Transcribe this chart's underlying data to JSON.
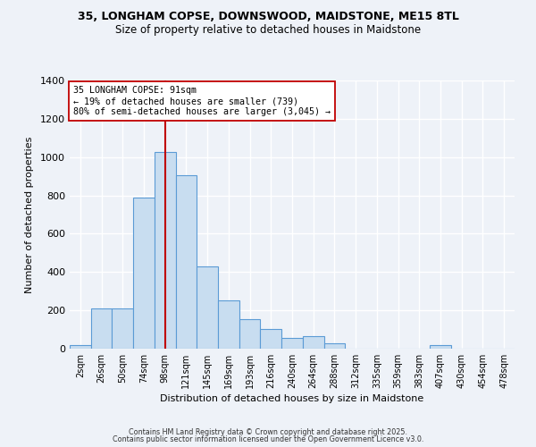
{
  "title_line1": "35, LONGHAM COPSE, DOWNSWOOD, MAIDSTONE, ME15 8TL",
  "title_line2": "Size of property relative to detached houses in Maidstone",
  "xlabel": "Distribution of detached houses by size in Maidstone",
  "ylabel": "Number of detached properties",
  "categories": [
    "2sqm",
    "26sqm",
    "50sqm",
    "74sqm",
    "98sqm",
    "121sqm",
    "145sqm",
    "169sqm",
    "193sqm",
    "216sqm",
    "240sqm",
    "264sqm",
    "288sqm",
    "312sqm",
    "335sqm",
    "359sqm",
    "383sqm",
    "407sqm",
    "430sqm",
    "454sqm",
    "478sqm"
  ],
  "values": [
    18,
    210,
    210,
    790,
    1025,
    905,
    430,
    250,
    155,
    105,
    55,
    65,
    30,
    0,
    0,
    0,
    0,
    18,
    0,
    0,
    0
  ],
  "bar_color": "#c8ddf0",
  "bar_edge_color": "#5b9bd5",
  "vline_x_index": 4,
  "vline_color": "#c00000",
  "annotation_text": "35 LONGHAM COPSE: 91sqm\n← 19% of detached houses are smaller (739)\n80% of semi-detached houses are larger (3,045) →",
  "annotation_box_color": "#ffffff",
  "annotation_box_edge_color": "#c00000",
  "ylim": [
    0,
    1400
  ],
  "yticks": [
    0,
    200,
    400,
    600,
    800,
    1000,
    1200,
    1400
  ],
  "footer_line1": "Contains HM Land Registry data © Crown copyright and database right 2025.",
  "footer_line2": "Contains public sector information licensed under the Open Government Licence v3.0.",
  "background_color": "#eef2f8",
  "plot_bg_color": "#eef2f8",
  "grid_color": "#ffffff"
}
